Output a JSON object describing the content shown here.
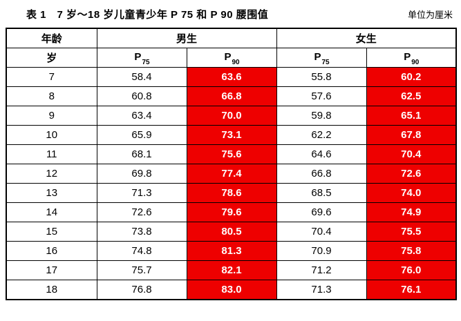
{
  "title": {
    "label": "表 1　7 岁～18 岁儿童青少年 P 75 和 P 90 腰围值",
    "unit": "单位为厘米"
  },
  "colors": {
    "highlight": "#ee0000",
    "highlight_text": "#ffffff",
    "border": "#000000"
  },
  "table": {
    "age_header": "年龄",
    "age_unit_header": "岁",
    "boys_header": "男生",
    "girls_header": "女生",
    "p75_label": "P",
    "p75_sub": "75",
    "p90_label": "P",
    "p90_sub": "90",
    "rows": [
      {
        "age": "7",
        "boy_p75": "58.4",
        "boy_p90": "63.6",
        "girl_p75": "55.8",
        "girl_p90": "60.2"
      },
      {
        "age": "8",
        "boy_p75": "60.8",
        "boy_p90": "66.8",
        "girl_p75": "57.6",
        "girl_p90": "62.5"
      },
      {
        "age": "9",
        "boy_p75": "63.4",
        "boy_p90": "70.0",
        "girl_p75": "59.8",
        "girl_p90": "65.1"
      },
      {
        "age": "10",
        "boy_p75": "65.9",
        "boy_p90": "73.1",
        "girl_p75": "62.2",
        "girl_p90": "67.8"
      },
      {
        "age": "11",
        "boy_p75": "68.1",
        "boy_p90": "75.6",
        "girl_p75": "64.6",
        "girl_p90": "70.4"
      },
      {
        "age": "12",
        "boy_p75": "69.8",
        "boy_p90": "77.4",
        "girl_p75": "66.8",
        "girl_p90": "72.6"
      },
      {
        "age": "13",
        "boy_p75": "71.3",
        "boy_p90": "78.6",
        "girl_p75": "68.5",
        "girl_p90": "74.0"
      },
      {
        "age": "14",
        "boy_p75": "72.6",
        "boy_p90": "79.6",
        "girl_p75": "69.6",
        "girl_p90": "74.9"
      },
      {
        "age": "15",
        "boy_p75": "73.8",
        "boy_p90": "80.5",
        "girl_p75": "70.4",
        "girl_p90": "75.5"
      },
      {
        "age": "16",
        "boy_p75": "74.8",
        "boy_p90": "81.3",
        "girl_p75": "70.9",
        "girl_p90": "75.8"
      },
      {
        "age": "17",
        "boy_p75": "75.7",
        "boy_p90": "82.1",
        "girl_p75": "71.2",
        "girl_p90": "76.0"
      },
      {
        "age": "18",
        "boy_p75": "76.8",
        "boy_p90": "83.0",
        "girl_p75": "71.3",
        "girl_p90": "76.1"
      }
    ]
  }
}
